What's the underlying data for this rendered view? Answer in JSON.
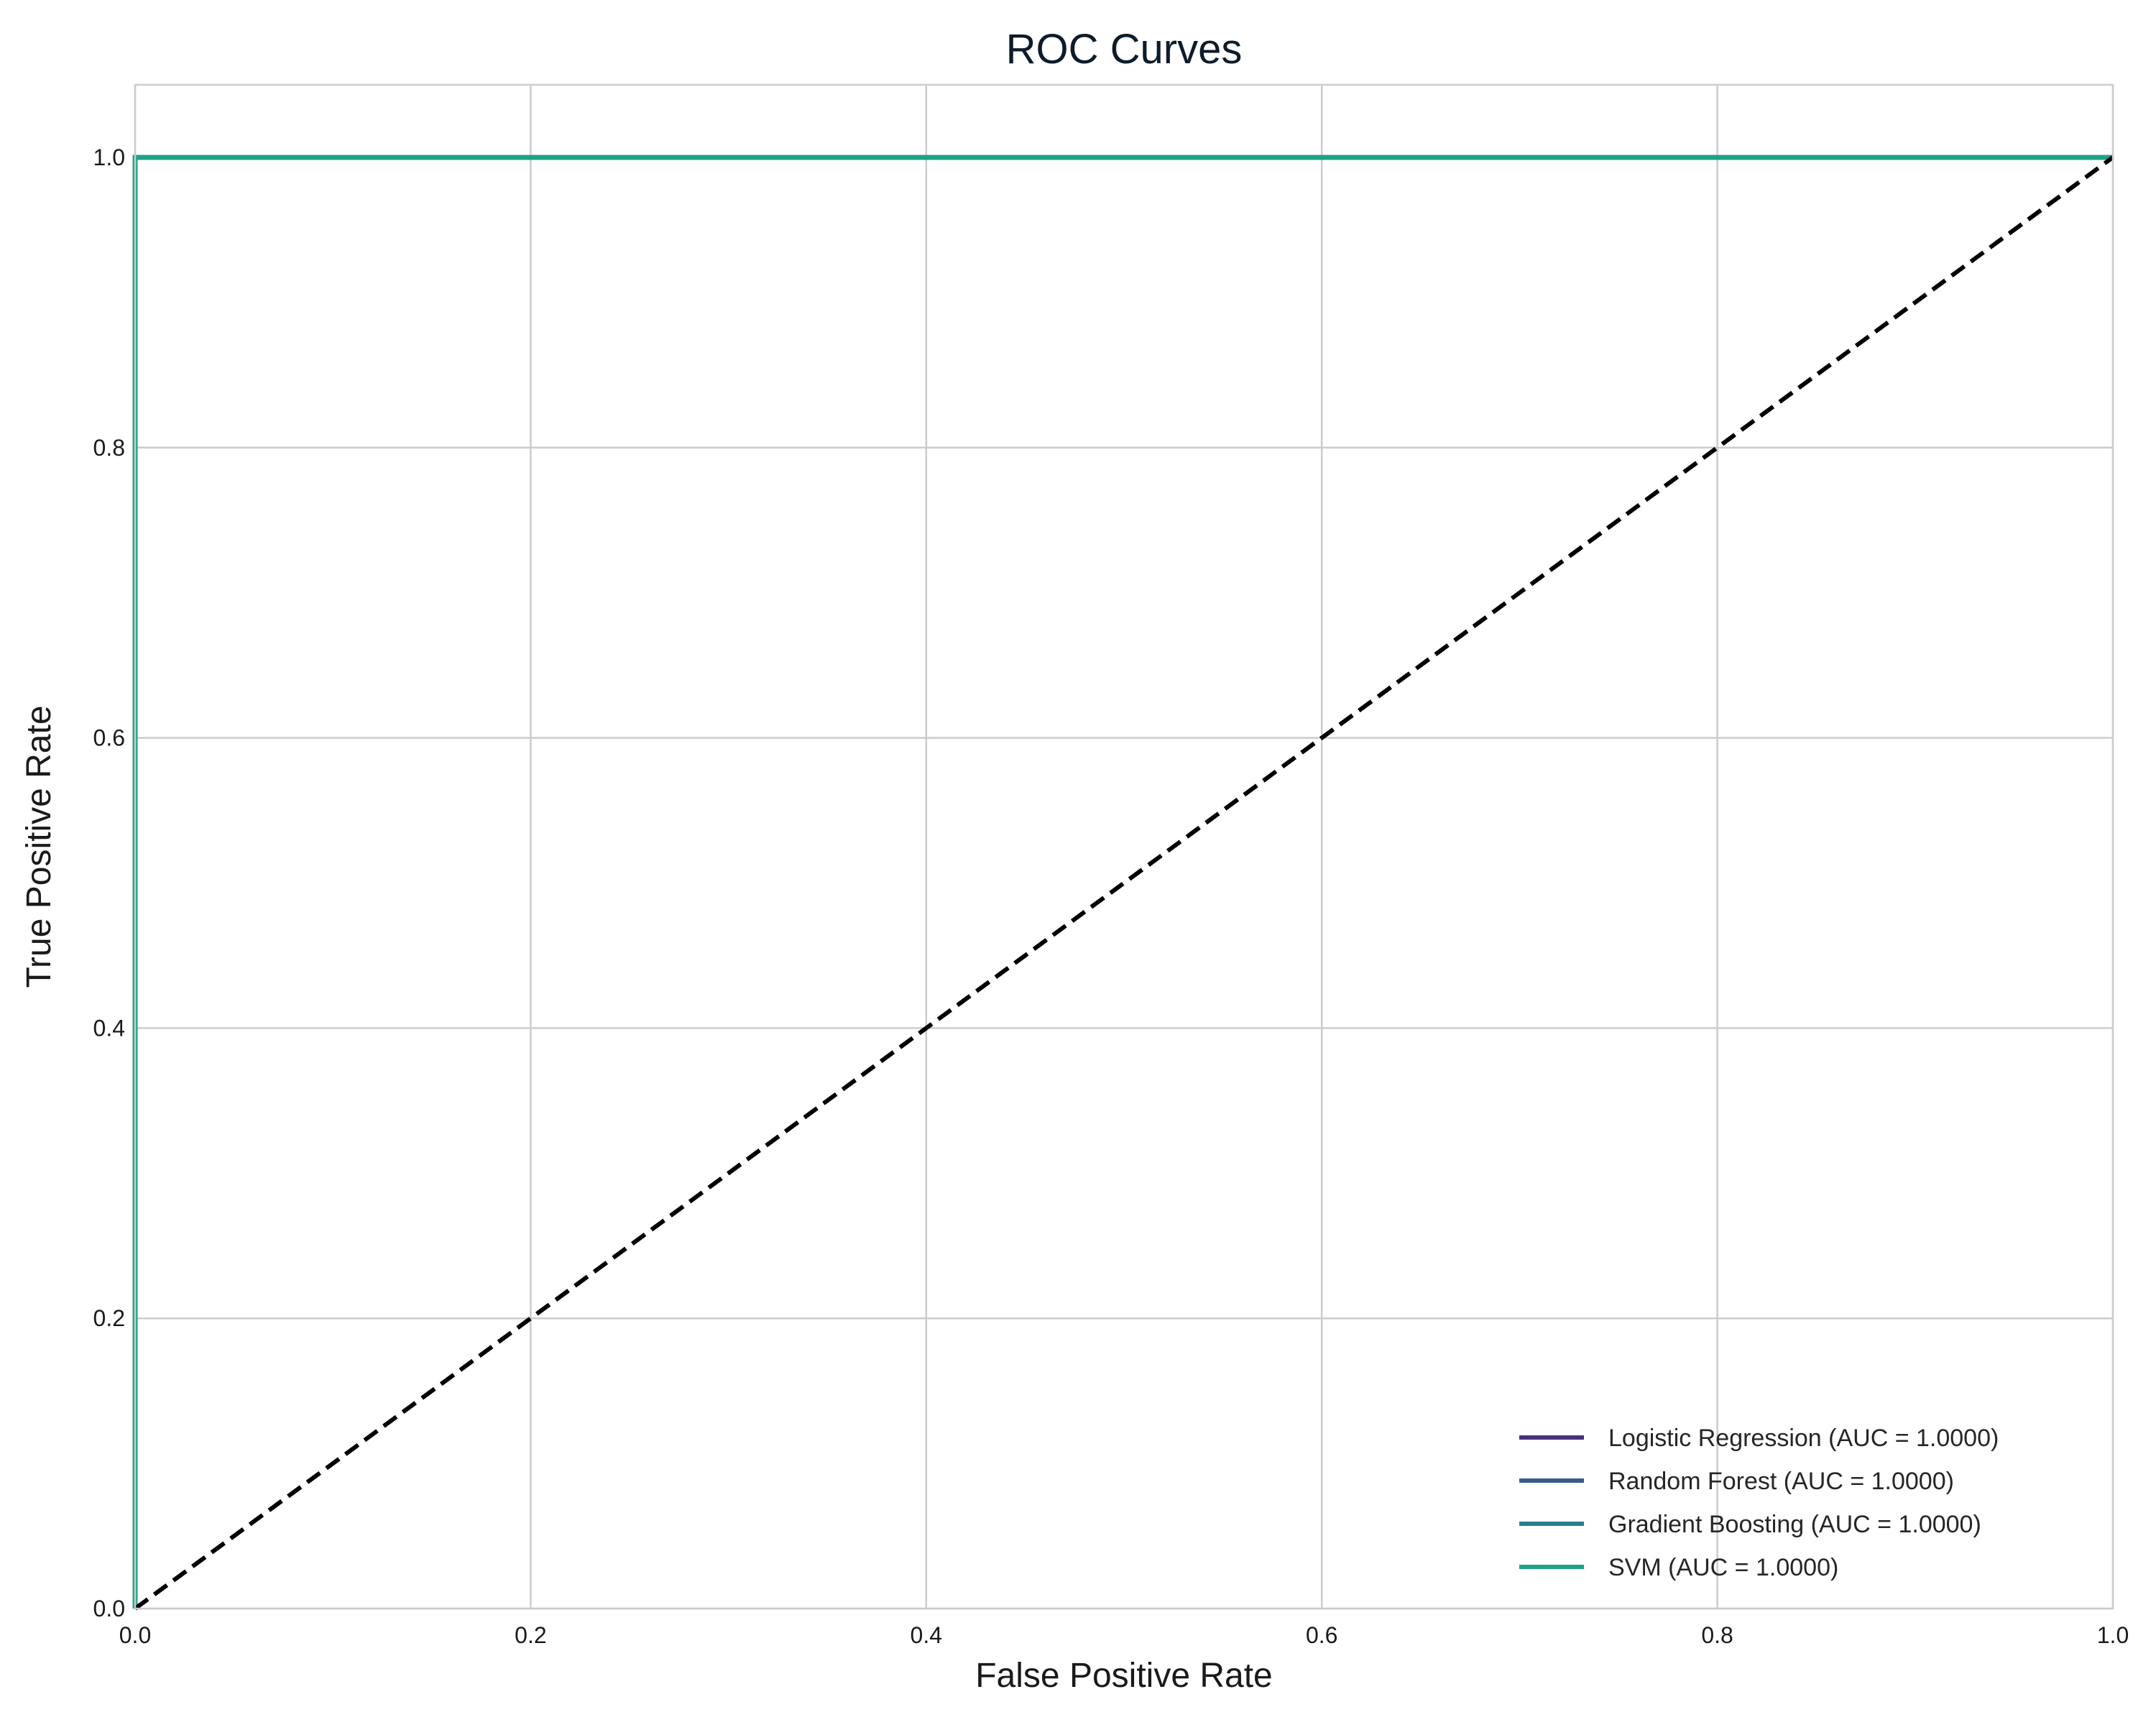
{
  "chart_data": {
    "type": "line",
    "title": "ROC Curves",
    "xlabel": "False Positive Rate",
    "ylabel": "True Positive Rate",
    "xlim": [
      0.0,
      1.0
    ],
    "ylim": [
      0.0,
      1.05
    ],
    "x_ticks": [
      0.0,
      0.2,
      0.4,
      0.6,
      0.8,
      1.0
    ],
    "y_ticks": [
      0.0,
      0.2,
      0.4,
      0.6,
      0.8,
      1.0
    ],
    "x_tick_labels": [
      "0.0",
      "0.2",
      "0.4",
      "0.6",
      "0.8",
      "1.0"
    ],
    "y_tick_labels": [
      "0.0",
      "0.2",
      "0.4",
      "0.6",
      "0.8",
      "1.0"
    ],
    "grid": true,
    "legend_position": "bottom-right",
    "series": [
      {
        "name": "Logistic Regression (AUC = 1.0000)",
        "color": "#46327e",
        "x": [
          0.0,
          0.0,
          1.0
        ],
        "y": [
          0.0,
          1.0,
          1.0
        ]
      },
      {
        "name": "Random Forest (AUC = 1.0000)",
        "color": "#365c8d",
        "x": [
          0.0,
          0.0,
          1.0
        ],
        "y": [
          0.0,
          1.0,
          1.0
        ]
      },
      {
        "name": "Gradient Boosting (AUC = 1.0000)",
        "color": "#277f8e",
        "x": [
          0.0,
          0.0,
          1.0
        ],
        "y": [
          0.0,
          1.0,
          1.0
        ]
      },
      {
        "name": "SVM (AUC = 1.0000)",
        "color": "#1fa187",
        "x": [
          0.0,
          0.0,
          1.0
        ],
        "y": [
          0.0,
          1.0,
          1.0
        ]
      }
    ],
    "reference_line": {
      "x": [
        0.0,
        1.0
      ],
      "y": [
        0.0,
        1.0
      ],
      "color": "#000000",
      "style": "dashed"
    }
  }
}
